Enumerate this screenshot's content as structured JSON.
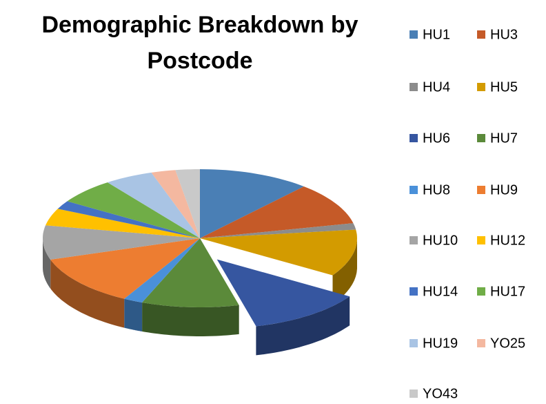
{
  "chart_data": {
    "type": "pie3d",
    "title": "Demographic Breakdown by Postcode",
    "categories": [
      "HU1",
      "HU3",
      "HU4",
      "HU5",
      "HU6",
      "HU7",
      "HU8",
      "HU9",
      "HU10",
      "HU12",
      "HU14",
      "HU17",
      "HU19",
      "YO25",
      "YO43"
    ],
    "values": [
      11.5,
      10,
      1.5,
      11,
      12,
      10,
      2,
      12,
      8,
      4,
      2,
      6,
      5,
      2.5,
      2.5
    ],
    "colors": [
      "#4a7fb5",
      "#c55a28",
      "#8c8c8c",
      "#d39b00",
      "#3656a0",
      "#5b8a3a",
      "#4a90d9",
      "#ed7d31",
      "#a5a5a5",
      "#ffc000",
      "#4472c4",
      "#70ad47",
      "#a9c4e4",
      "#f4b8a0",
      "#c9c9c9"
    ],
    "exploded": "HU6"
  }
}
